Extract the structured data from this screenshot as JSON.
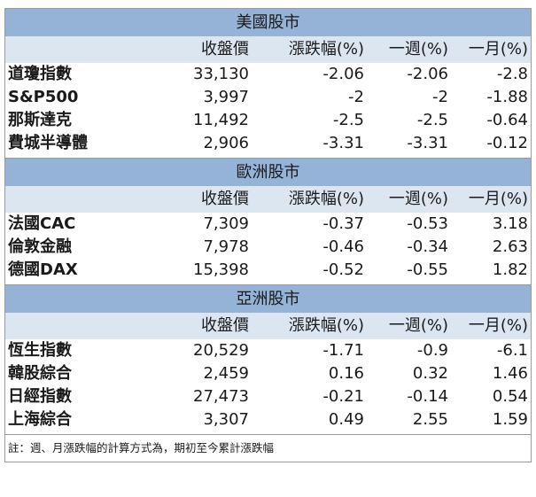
{
  "columns": [
    "",
    "收盤價",
    "漲跌幅(%)",
    "一週(%)",
    "一月(%)"
  ],
  "sections": [
    {
      "title": "美國股市",
      "rows": [
        {
          "name": "道瓊指數",
          "close": "33,130",
          "change": "-2.06",
          "week": "-2.06",
          "month": "-2.8"
        },
        {
          "name": "S&P500",
          "close": "3,997",
          "change": "-2",
          "week": "-2",
          "month": "-1.88"
        },
        {
          "name": "那斯達克",
          "close": "11,492",
          "change": "-2.5",
          "week": "-2.5",
          "month": "-0.64"
        },
        {
          "name": "費城半導體",
          "close": "2,906",
          "change": "-3.31",
          "week": "-3.31",
          "month": "-0.12"
        }
      ]
    },
    {
      "title": "歐洲股市",
      "rows": [
        {
          "name": "法國CAC",
          "close": "7,309",
          "change": "-0.37",
          "week": "-0.53",
          "month": "3.18"
        },
        {
          "name": "倫敦金融",
          "close": "7,978",
          "change": "-0.46",
          "week": "-0.34",
          "month": "2.63"
        },
        {
          "name": "德國DAX",
          "close": "15,398",
          "change": "-0.52",
          "week": "-0.55",
          "month": "1.82"
        }
      ]
    },
    {
      "title": "亞洲股市",
      "rows": [
        {
          "name": "恆生指數",
          "close": "20,529",
          "change": "-1.71",
          "week": "-0.9",
          "month": "-6.1"
        },
        {
          "name": "韓股綜合",
          "close": "2,459",
          "change": "0.16",
          "week": "0.32",
          "month": "1.46"
        },
        {
          "name": "日經指數",
          "close": "27,473",
          "change": "-0.21",
          "week": "-0.14",
          "month": "0.54"
        },
        {
          "name": "上海綜合",
          "close": "3,307",
          "change": "0.49",
          "week": "2.55",
          "month": "1.59"
        }
      ]
    }
  ],
  "footer": "註：週、月漲跌幅的計算方式為，期初至今累計漲跌幅",
  "colors": {
    "section_title_bg": "#95b3d7",
    "header_bg": "#dce6f1",
    "border": "#9a9a9a"
  }
}
